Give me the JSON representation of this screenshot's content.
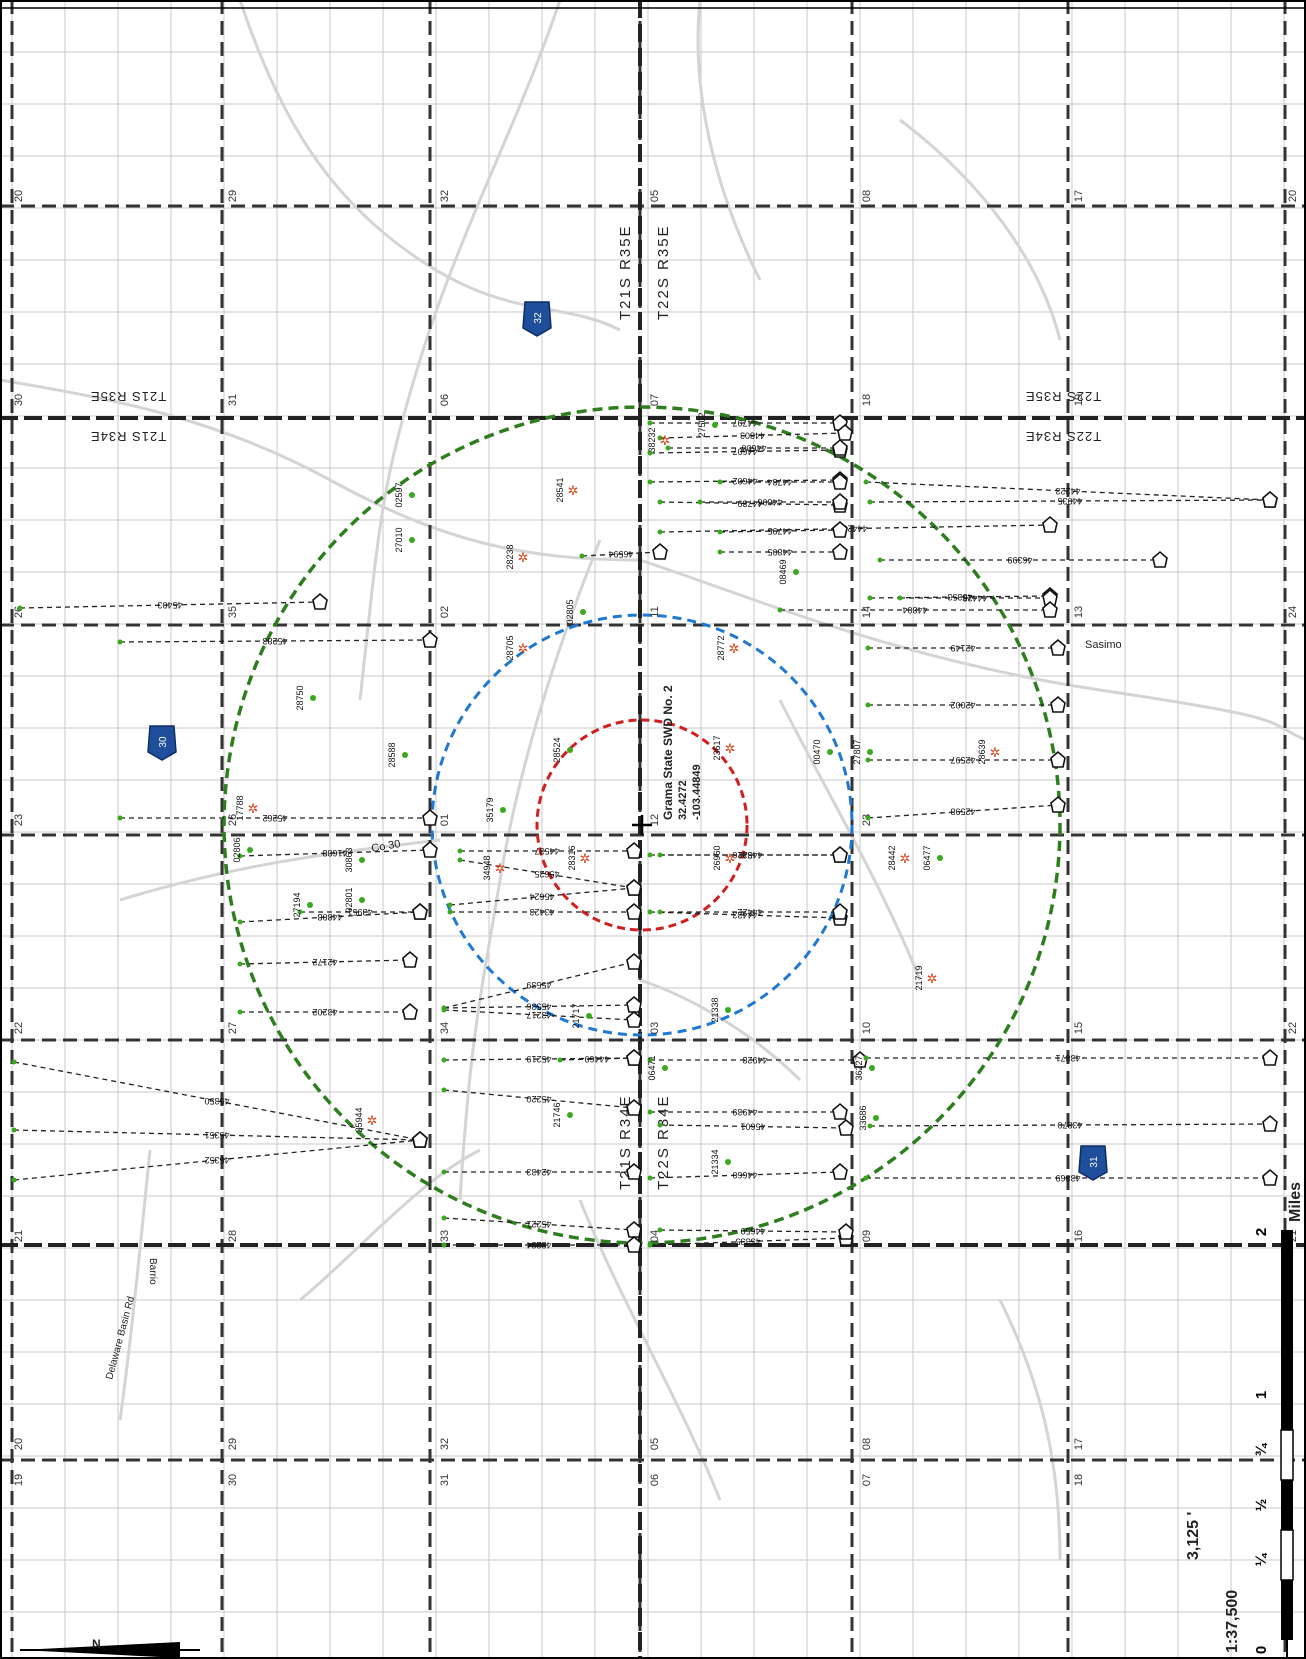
{
  "well": {
    "name": "Grama State SWD No. 2",
    "lat": "32.4272",
    "lon": "-103.44849"
  },
  "townships": {
    "north_east": "T21S R35E",
    "south_east": "T22S R35E",
    "north_west": "T21S R34E",
    "south_west": "T22S R34E",
    "left_upper": "T21S R35E",
    "left_lower": "T21S R34E",
    "right_upper": "T22S R35E",
    "right_lower": "T22S R34E"
  },
  "roads": {
    "route_32": "32",
    "route_30": "30",
    "route_31": "31",
    "co30": "Co 30",
    "sasimo": "Sasimo",
    "delaware": "Delaware Basin Rd",
    "barrio": "Barrio"
  },
  "sections": {
    "row1": [
      "20",
      "29",
      "32",
      "05",
      "08",
      "17",
      "20"
    ],
    "row1b": [
      "19"
    ],
    "row2": [
      "30",
      "31",
      "06",
      "07",
      "18",
      "19"
    ],
    "row2b": [
      "25"
    ],
    "row3": [
      "26",
      "35",
      "02",
      "11",
      "14",
      "13",
      "24"
    ],
    "row3b": [
      "36"
    ],
    "row4": [
      "23",
      "26",
      "01",
      "12",
      "23"
    ],
    "row5": [
      "22",
      "27",
      "34",
      "03",
      "10",
      "15",
      "22"
    ],
    "row6": [
      "21",
      "28",
      "33",
      "04",
      "09",
      "16",
      "21"
    ],
    "row7": [
      "20",
      "29",
      "32",
      "05",
      "08",
      "17"
    ],
    "row7b": [
      "19",
      "30",
      "31",
      "06",
      "07",
      "18"
    ]
  },
  "well_ids": {
    "w1": "44797",
    "w2": "44803",
    "w3": "44607",
    "w4": "44600",
    "w5": "44602",
    "w6": "44784",
    "w7": "44789",
    "w8": "44606",
    "w9": "44223",
    "w10": "44035",
    "w11": "44429",
    "w12": "46399",
    "w13": "45353",
    "w14": "44428",
    "w15": "45403",
    "w16": "45283",
    "w17": "42149",
    "w18": "42002",
    "w19": "42597",
    "w20": "42598",
    "w21": "45262",
    "w22": "41688",
    "w23": "44537",
    "w24": "45625",
    "w25": "45624",
    "w26": "43426",
    "w27": "44521",
    "w28": "43423",
    "w29": "44423",
    "w30": "44422",
    "w31": "43951",
    "w32": "44808",
    "w33": "42172",
    "w34": "45539",
    "w35": "45536",
    "w36": "43202",
    "w37": "43217",
    "w38": "45219",
    "w39": "44469",
    "w40": "44928",
    "w41": "43871",
    "w42": "45220",
    "w43": "44939",
    "w44": "45601",
    "w45": "43870",
    "w46": "45350",
    "w47": "45351",
    "w48": "45352",
    "w49": "42433",
    "w50": "44660",
    "w51": "43869",
    "w52": "45221",
    "w53": "43234",
    "w54": "45335",
    "w55": "44659",
    "w56": "46594",
    "w57": "44795",
    "w58": "44805",
    "w59": "44804"
  },
  "other_ids": {
    "a1": "38232",
    "a2": "27502",
    "a3": "28541",
    "a4": "02597",
    "a5": "27010",
    "a6": "28238",
    "a7": "02805",
    "a8": "28705",
    "a9": "28772",
    "a10": "28750",
    "a11": "28588",
    "a12": "28524",
    "a13": "23617",
    "a14": "00470",
    "a15": "27807",
    "a16": "28639",
    "a17": "35179",
    "a18": "17788",
    "a19": "30863",
    "a20": "02801",
    "a21": "02806",
    "a22": "34948",
    "a23": "28316",
    "a24": "26960",
    "a25": "28442",
    "a26": "06477",
    "a27": "27194",
    "a28": "21719",
    "a29": "21338",
    "a30": "21717",
    "a31": "06471",
    "a32": "36227",
    "a33": "21746",
    "a34": "21334",
    "a35": "33686",
    "a36": "25944",
    "a37": "08469"
  },
  "scale": {
    "ratio": "1:37,500",
    "feet": "3,125 '",
    "ticks": [
      "0",
      "¼",
      "½",
      "¾",
      "1",
      "2"
    ],
    "unit": "Miles"
  },
  "north": "N",
  "colors": {
    "outer_ring": "#2e7d1e",
    "mid_ring": "#1f78d1",
    "inner_ring": "#d11f1f",
    "grid": "#444444",
    "road": "#cfcfcf",
    "shield": "#1f4f9a",
    "well_dot": "#3aa81d",
    "star": "#d6451b"
  }
}
